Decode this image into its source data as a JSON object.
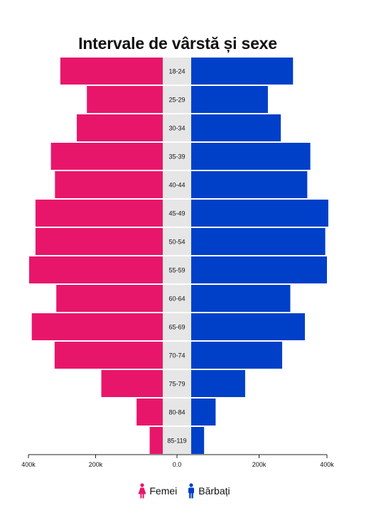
{
  "chart_data": {
    "type": "bar",
    "title": "Intervale de vârstă și sexe",
    "categories": [
      "18-24",
      "25-29",
      "30-34",
      "35-39",
      "40-44",
      "45-49",
      "50-54",
      "55-59",
      "60-64",
      "65-69",
      "70-74",
      "75-79",
      "80-84",
      "85-119"
    ],
    "series": [
      {
        "name": "Femei",
        "color": "#E8166B",
        "values": [
          305000,
          226000,
          256000,
          333000,
          321000,
          379000,
          379000,
          398000,
          317000,
          390000,
          322000,
          183000,
          78000,
          39000
        ]
      },
      {
        "name": "Bărbați",
        "color": "#0040C8",
        "values": [
          300000,
          226000,
          264000,
          351000,
          342000,
          404000,
          395000,
          400000,
          292000,
          335000,
          268000,
          159000,
          72000,
          38000
        ]
      }
    ],
    "x_ticks": [
      "400k",
      "200k",
      "0.0",
      "200k",
      "400k"
    ],
    "xlim": [
      -400000,
      400000
    ],
    "grid": false,
    "legend_position": "bottom"
  }
}
